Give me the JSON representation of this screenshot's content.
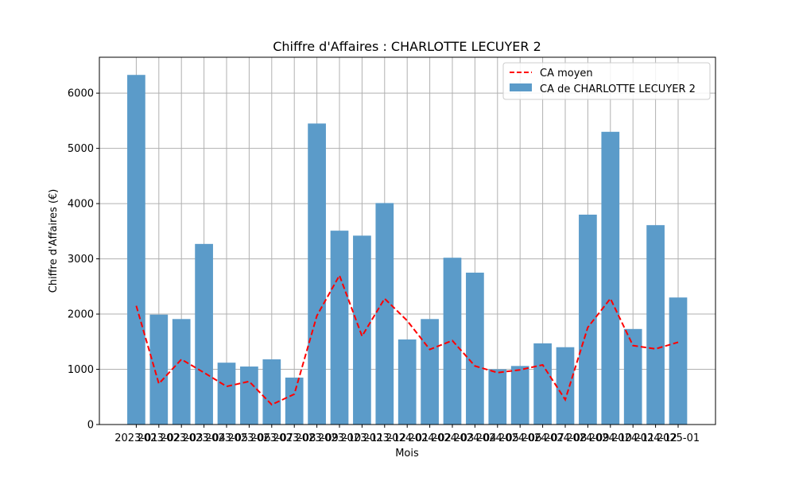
{
  "chart_data": {
    "type": "bar",
    "title": "Chiffre d'Affaires : CHARLOTTE LECUYER 2",
    "xlabel": "Mois",
    "ylabel": "Chiffre d'Affaires (€)",
    "ylim": [
      0,
      6650
    ],
    "yticks": [
      0,
      1000,
      2000,
      3000,
      4000,
      5000,
      6000
    ],
    "grid": true,
    "legend_position": "top-right",
    "categories": [
      "2023-01",
      "2023-02",
      "2023-03",
      "2023-04",
      "2023-05",
      "2023-06",
      "2023-07",
      "2023-08",
      "2023-09",
      "2023-10",
      "2023-11",
      "2023-12",
      "2024-01",
      "2024-02",
      "2024-03",
      "2024-04",
      "2024-05",
      "2024-06",
      "2024-07",
      "2024-08",
      "2024-09",
      "2024-10",
      "2024-11",
      "2024-12",
      "2025-01"
    ],
    "series": [
      {
        "name": "CA de CHARLOTTE LECUYER 2",
        "kind": "bar",
        "color": "#5b9bc9",
        "values": [
          6330,
          1990,
          1910,
          3270,
          1120,
          1050,
          1180,
          850,
          5450,
          3510,
          3420,
          4010,
          1540,
          1910,
          3020,
          2750,
          1000,
          1060,
          1470,
          1400,
          3800,
          5300,
          1730,
          3610,
          2300
        ]
      },
      {
        "name": "CA moyen",
        "kind": "line",
        "style": "dashed",
        "color": "#ff0000",
        "values": [
          2150,
          740,
          1180,
          940,
          690,
          780,
          360,
          550,
          1970,
          2700,
          1600,
          2280,
          1880,
          1360,
          1520,
          1060,
          940,
          990,
          1080,
          450,
          1760,
          2280,
          1430,
          1370,
          1490
        ]
      }
    ],
    "legend": [
      "CA moyen",
      "CA de CHARLOTTE LECUYER 2"
    ]
  }
}
